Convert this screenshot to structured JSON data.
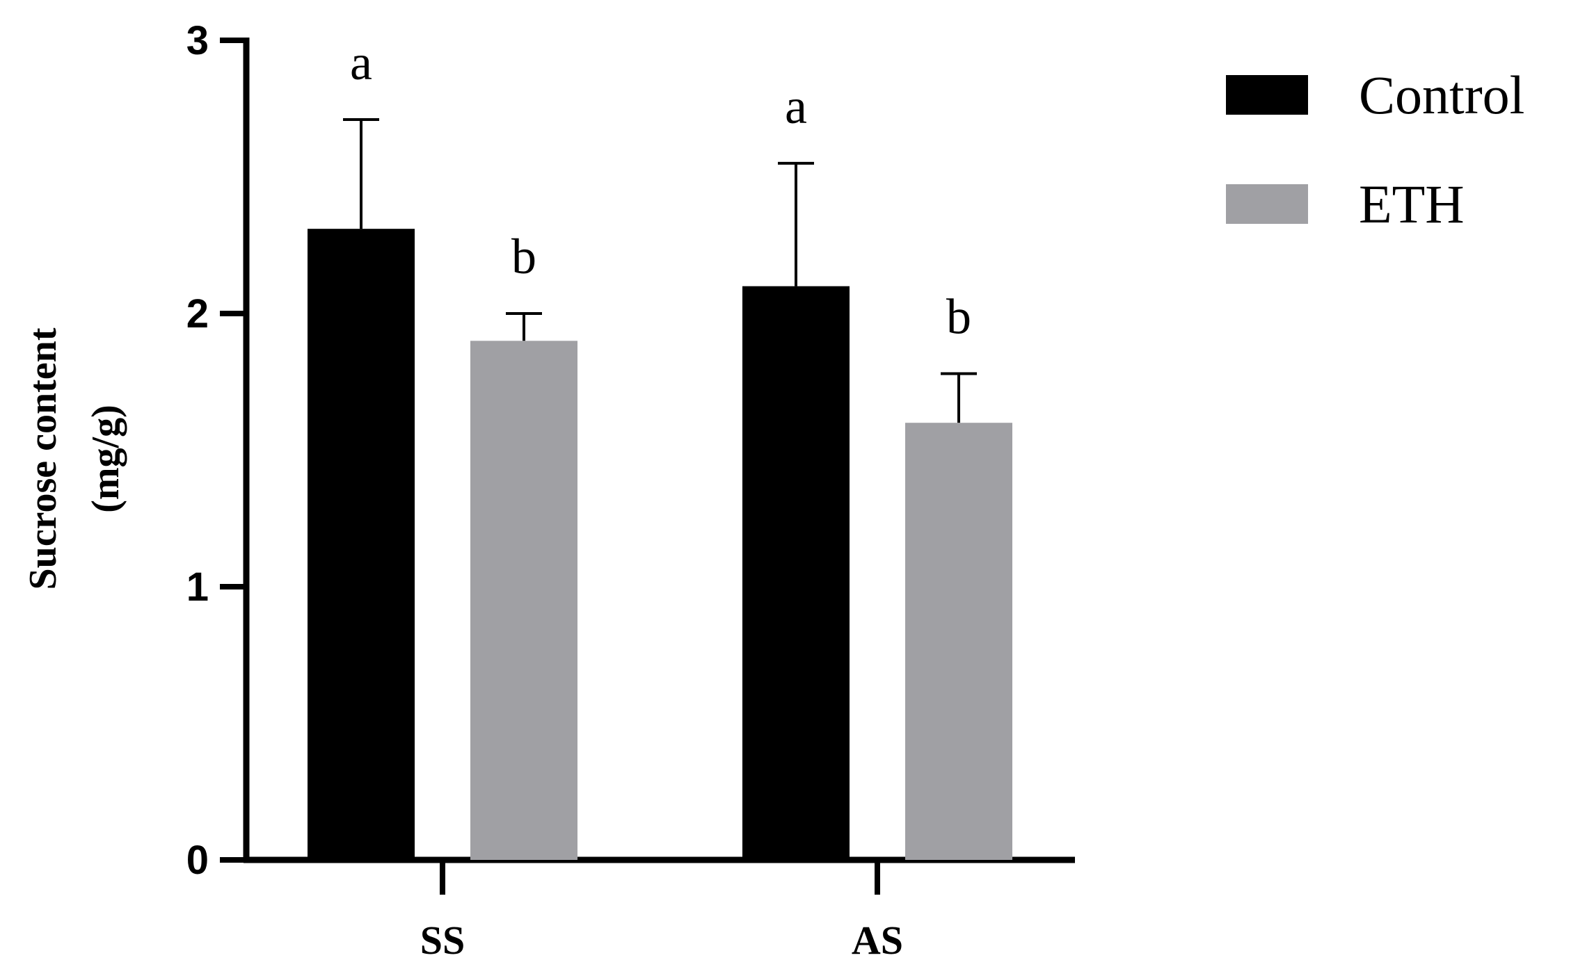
{
  "chart_data": {
    "type": "bar",
    "categories": [
      "SS",
      "AS"
    ],
    "y_label": [
      "Sucrose content",
      "(mg/g)"
    ],
    "series": [
      {
        "name": "Control",
        "color": "#000000",
        "values": [
          2.31,
          2.1
        ],
        "errors": [
          0.4,
          0.45
        ],
        "letters": [
          "a",
          "a"
        ]
      },
      {
        "name": "ETH",
        "color": "#a0a0a4",
        "values": [
          1.9,
          1.6
        ],
        "errors": [
          0.1,
          0.18
        ],
        "letters": [
          "b",
          "b"
        ]
      }
    ],
    "ylim": [
      0,
      3
    ],
    "yticks": [
      0,
      1,
      2,
      3
    ],
    "grid": false,
    "legend": "top-right"
  }
}
